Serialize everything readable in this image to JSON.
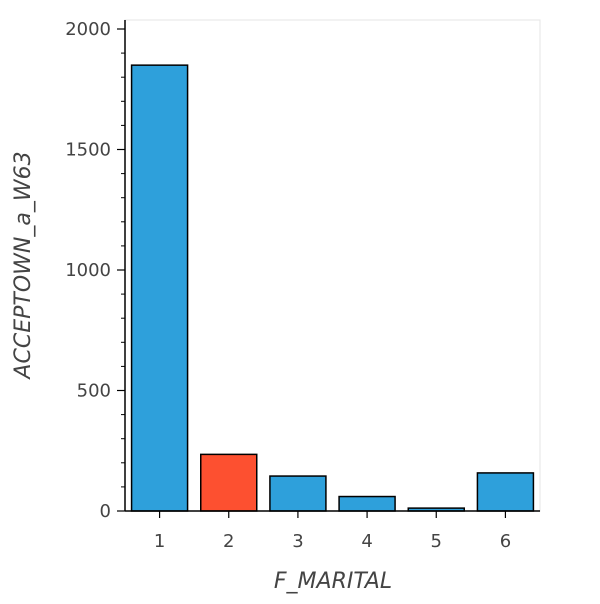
{
  "chart_data": {
    "type": "bar",
    "title": "",
    "xlabel": "F_MARITAL",
    "ylabel": "ACCEPTOWN_a_W63",
    "categories": [
      "1",
      "2",
      "3",
      "4",
      "5",
      "6"
    ],
    "values": [
      1850,
      235,
      145,
      60,
      12,
      158
    ],
    "ylim": [
      0,
      2000
    ],
    "yticks": [
      0,
      500,
      1000,
      1500,
      2000
    ],
    "y_minor_step": 100,
    "highlight_index": 1,
    "grid": false,
    "legend": "none",
    "colors": {
      "bar": "#2ea0db",
      "highlight": "#fd5030",
      "bar_outline": "#000000",
      "axis": "#000000",
      "frame": "#e5e5e5",
      "text": "#444444"
    }
  }
}
